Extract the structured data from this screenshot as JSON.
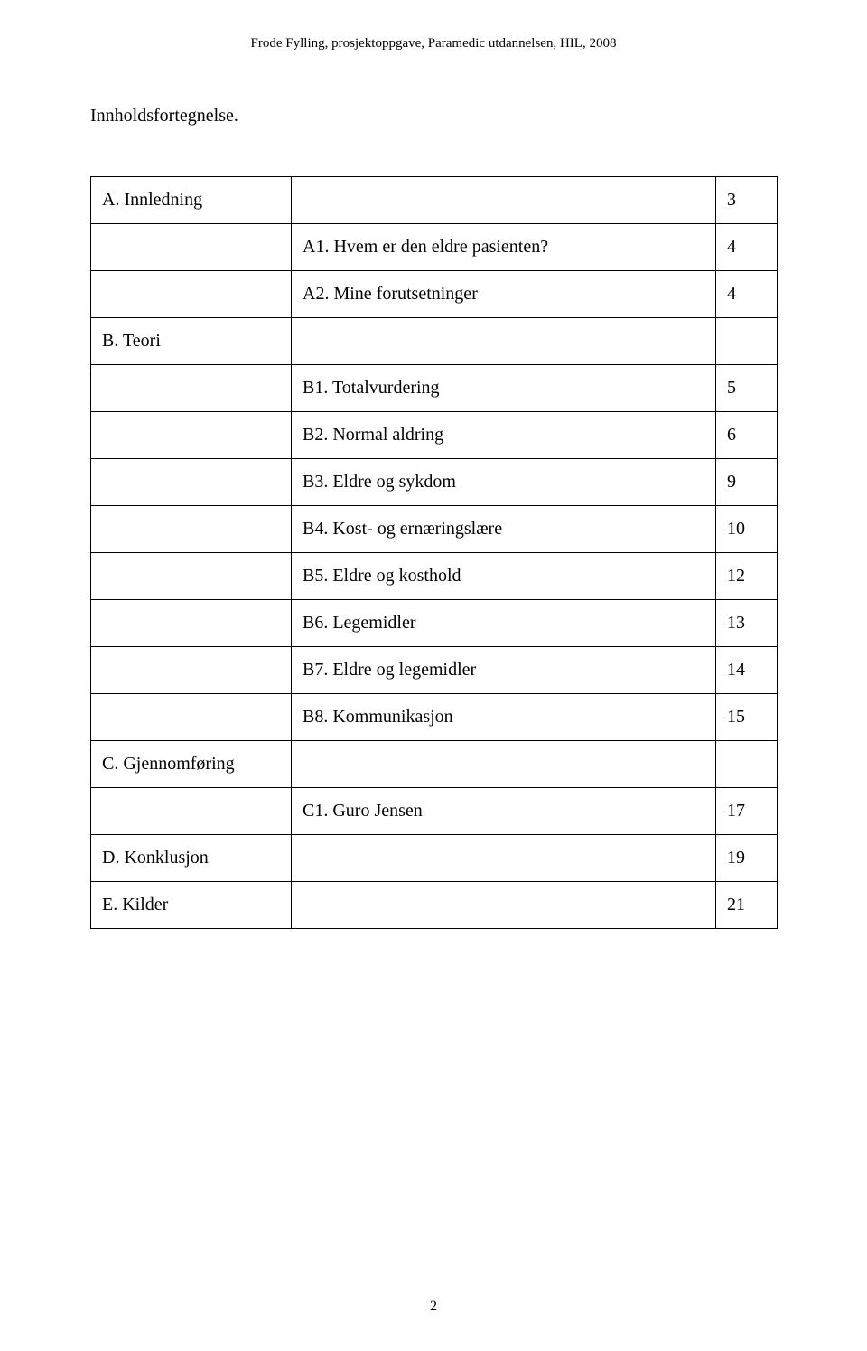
{
  "header": "Frode Fylling, prosjektoppgave, Paramedic utdannelsen, HIL, 2008",
  "title": "Innholdsfortegnelse.",
  "page_number": "2",
  "table": {
    "rows": [
      {
        "left": "A. Innledning",
        "mid": "",
        "right": "3"
      },
      {
        "left": "",
        "mid": "A1. Hvem er den eldre pasienten?",
        "right": "4"
      },
      {
        "left": "",
        "mid": "A2. Mine forutsetninger",
        "right": "4"
      },
      {
        "left": "B. Teori",
        "mid": "",
        "right": ""
      },
      {
        "left": "",
        "mid": "B1. Totalvurdering",
        "right": "5"
      },
      {
        "left": "",
        "mid": "B2. Normal aldring",
        "right": "6"
      },
      {
        "left": "",
        "mid": "B3. Eldre og sykdom",
        "right": "9"
      },
      {
        "left": "",
        "mid": "B4. Kost- og ernæringslære",
        "right": "10"
      },
      {
        "left": "",
        "mid": "B5. Eldre og kosthold",
        "right": "12"
      },
      {
        "left": "",
        "mid": "B6. Legemidler",
        "right": "13"
      },
      {
        "left": "",
        "mid": "B7. Eldre og legemidler",
        "right": "14"
      },
      {
        "left": "",
        "mid": "B8. Kommunikasjon",
        "right": "15"
      },
      {
        "left": "C. Gjennomføring",
        "mid": "",
        "right": ""
      },
      {
        "left": "",
        "mid": "C1. Guro Jensen",
        "right": "17"
      },
      {
        "left": "D. Konklusjon",
        "mid": "",
        "right": "19"
      },
      {
        "left": "E. Kilder",
        "mid": "",
        "right": "21"
      }
    ]
  },
  "colors": {
    "background": "#ffffff",
    "text": "#000000",
    "border": "#000000"
  }
}
